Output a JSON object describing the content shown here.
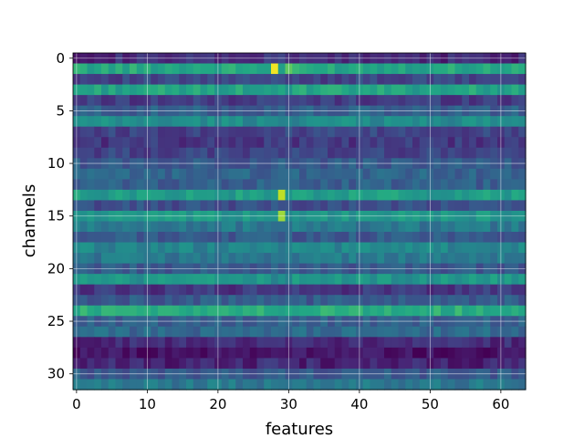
{
  "chart_data": {
    "type": "heatmap",
    "title": "",
    "xlabel": "features",
    "ylabel": "channels",
    "x_range": [
      0,
      63
    ],
    "y_range": [
      0,
      31
    ],
    "y_inverted": true,
    "x_ticks": [
      0,
      10,
      20,
      30,
      40,
      50,
      60
    ],
    "y_ticks": [
      0,
      5,
      10,
      15,
      20,
      25,
      30
    ],
    "grid": true,
    "colormap": [
      "#440154",
      "#482475",
      "#414487",
      "#355f8d",
      "#2a788e",
      "#21918c",
      "#22a884",
      "#44bf70",
      "#7ad151",
      "#bddf26",
      "#fde725"
    ],
    "value_scale": [
      0,
      1
    ],
    "row_levels": [
      0.12,
      0.6,
      0.2,
      0.58,
      0.18,
      0.3,
      0.48,
      0.2,
      0.16,
      0.2,
      0.28,
      0.32,
      0.3,
      0.55,
      0.24,
      0.52,
      0.4,
      0.28,
      0.45,
      0.4,
      0.28,
      0.52,
      0.16,
      0.28,
      0.62,
      0.3,
      0.34,
      0.12,
      0.04,
      0.1,
      0.28,
      0.4
    ],
    "hot_spots": [
      {
        "feature": 28,
        "channel": 1,
        "value": 0.98
      },
      {
        "feature": 29,
        "channel": 13,
        "value": 0.9
      },
      {
        "feature": 29,
        "channel": 15,
        "value": 0.85
      },
      {
        "feature": 30,
        "channel": 1,
        "value": 0.75
      }
    ]
  }
}
